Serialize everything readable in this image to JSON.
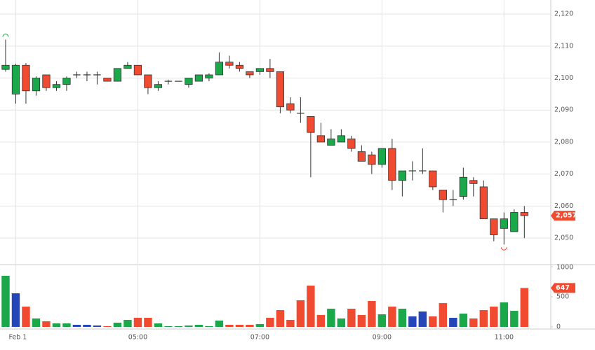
{
  "chart_data": {
    "type": "candlestick",
    "open": [
      2102.7,
      2095,
      2104,
      2096,
      2101,
      2097,
      2098,
      2101,
      2101,
      2101,
      2100,
      2099,
      2103,
      2104,
      2101,
      2097,
      2099,
      2099,
      2098,
      2099,
      2100,
      2101,
      2105,
      2104,
      2102,
      2102,
      2103,
      2102,
      2092,
      2089,
      2088,
      2082,
      2079,
      2080,
      2081,
      2077,
      2076,
      2073,
      2078,
      2068,
      2071,
      2071,
      2071,
      2065,
      2062,
      2063,
      2068,
      2066,
      2056,
      2053,
      2052,
      2058
    ],
    "high": [
      2112,
      2104.5,
      2104.7,
      2100.5,
      2101,
      2099,
      2100.5,
      2102,
      2102,
      2102,
      2100,
      2103,
      2105,
      2104,
      2101,
      2099,
      2099.5,
      2099,
      2100,
      2101,
      2101.5,
      2108,
      2107,
      2105,
      2102,
      2103,
      2106,
      2102,
      2094,
      2094,
      2088,
      2086,
      2084,
      2084,
      2082,
      2079,
      2077,
      2078,
      2081,
      2071,
      2074,
      2078,
      2071,
      2065,
      2065,
      2072,
      2069,
      2068,
      2056,
      2058,
      2059,
      2060
    ],
    "low": [
      2102,
      2092,
      2092,
      2094.5,
      2096,
      2096,
      2096,
      2100,
      2099,
      2098,
      2099,
      2099,
      2103,
      2101,
      2095,
      2096,
      2098,
      2099,
      2097,
      2099,
      2099,
      2101,
      2103,
      2102,
      2100,
      2101,
      2100,
      2089,
      2089,
      2086,
      2069,
      2080,
      2079,
      2080,
      2077,
      2074,
      2070,
      2072,
      2065,
      2063,
      2068,
      2070,
      2065,
      2058,
      2060,
      2062,
      2063,
      2056,
      2049,
      2048,
      2052,
      2050
    ],
    "close": [
      2104,
      2104,
      2096,
      2100,
      2097,
      2098,
      2100,
      2101,
      2101,
      2101,
      2099,
      2103,
      2104,
      2101,
      2097,
      2098,
      2099,
      2099,
      2100,
      2101,
      2101,
      2105,
      2104,
      2103,
      2101,
      2103,
      2102,
      2091,
      2090,
      2089,
      2083,
      2080,
      2081,
      2082,
      2078,
      2074,
      2073,
      2078,
      2068,
      2071,
      2071,
      2071,
      2066,
      2062,
      2062,
      2069,
      2067,
      2056,
      2051,
      2056,
      2058,
      2057
    ],
    "volume": [
      849,
      558,
      337,
      140,
      93,
      58,
      58,
      35,
      35,
      23,
      12,
      70,
      116,
      151,
      151,
      58,
      12,
      12,
      23,
      35,
      12,
      105,
      35,
      35,
      35,
      47,
      151,
      279,
      116,
      442,
      686,
      198,
      302,
      140,
      302,
      198,
      430,
      209,
      337,
      302,
      174,
      256,
      174,
      395,
      151,
      221,
      140,
      279,
      337,
      407,
      267,
      647
    ],
    "volume_colors": [
      "up",
      "flat",
      "down",
      "up",
      "down",
      "up",
      "up",
      "flat",
      "flat",
      "flat",
      "down",
      "up",
      "up",
      "down",
      "down",
      "up",
      "up",
      "up",
      "up",
      "up",
      "up",
      "up",
      "down",
      "down",
      "down",
      "up",
      "down",
      "down",
      "down",
      "down",
      "down",
      "down",
      "up",
      "up",
      "down",
      "down",
      "down",
      "up",
      "down",
      "up",
      "flat",
      "flat",
      "down",
      "down",
      "flat",
      "up",
      "down",
      "down",
      "down",
      "up",
      "up",
      "down"
    ],
    "colors": {
      "up": "#1aa84a",
      "down": "#f04a30",
      "flat": "#2546b8",
      "doji": "#444444"
    },
    "xlim": [
      -0.55,
      53.6
    ],
    "xticks": [
      {
        "value": 1,
        "label": "Feb 1"
      },
      {
        "value": 13,
        "label": "05:00"
      },
      {
        "value": 25,
        "label": "07:00"
      },
      {
        "value": 37,
        "label": "09:00"
      },
      {
        "value": 49,
        "label": "11:00"
      }
    ],
    "ylim": [
      2041.7,
      2124.4
    ],
    "yticks": [
      {
        "value": 2120,
        "label": "2,120"
      },
      {
        "value": 2110,
        "label": "2,110"
      },
      {
        "value": 2100,
        "label": "2,100"
      },
      {
        "value": 2090,
        "label": "2,090"
      },
      {
        "value": 2080,
        "label": "2,080"
      },
      {
        "value": 2070,
        "label": "2,070"
      },
      {
        "value": 2060,
        "label": "2,060"
      },
      {
        "value": 2050,
        "label": "2,050"
      }
    ],
    "vlim": [
      -35,
      1035
    ],
    "vticks": [
      0,
      500,
      1000
    ],
    "last_label": {
      "value": 2057,
      "label": "2,057"
    },
    "grid": true
  }
}
